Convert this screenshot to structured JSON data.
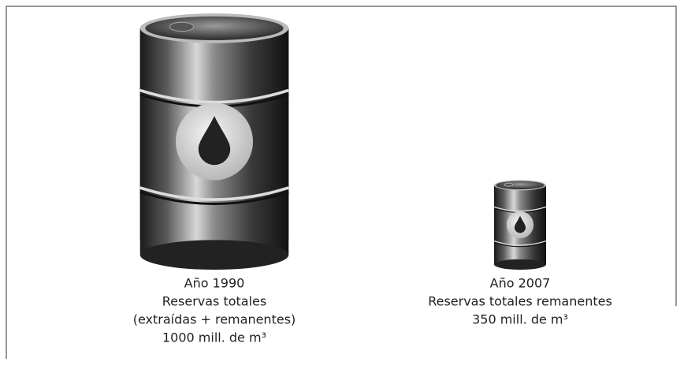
{
  "chart_data": {
    "type": "pictogram",
    "categories": [
      "Año 1990",
      "Año 2007"
    ],
    "descriptions": [
      [
        "Reservas totales",
        "(extraídas + remanentes)"
      ],
      [
        "Reservas totales remanentes"
      ]
    ],
    "values": [
      1000,
      350
    ],
    "value_labels": [
      "1000 mill. de m³",
      "350 mill. de m³"
    ]
  }
}
